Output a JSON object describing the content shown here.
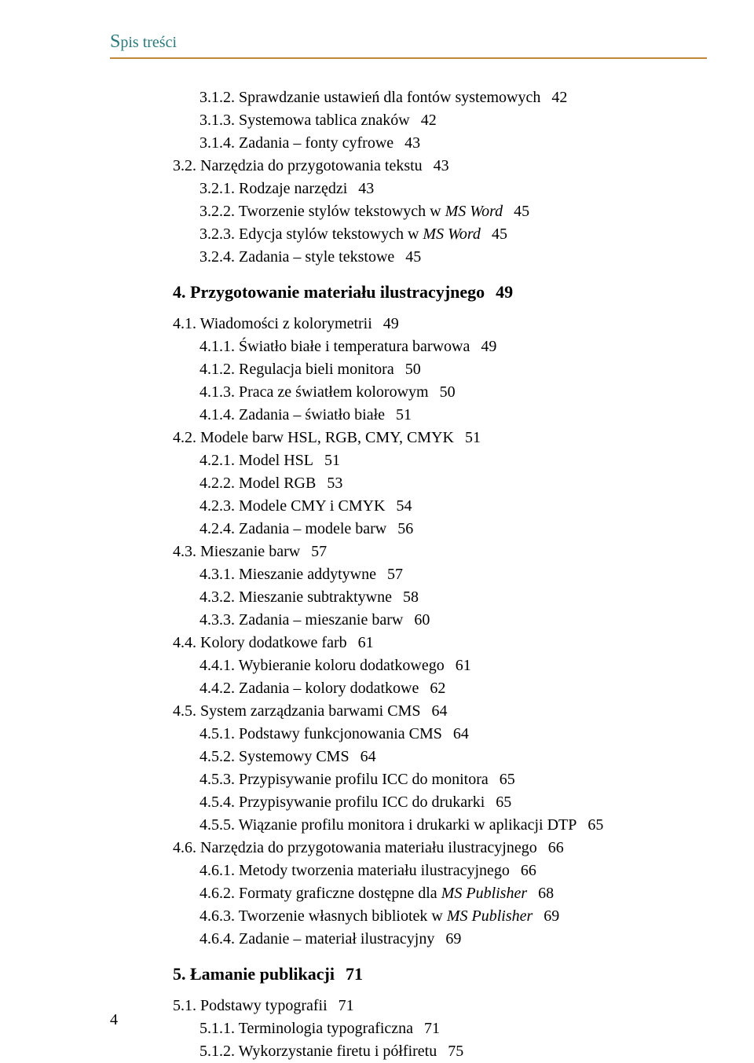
{
  "header": {
    "title_cap": "S",
    "title_rest": "pis treści"
  },
  "page_number": "4",
  "items": [
    {
      "lvl": 1,
      "num": "3.1.2.",
      "text": "Sprawdzanie ustawień dla fontów systemowych",
      "page": "42"
    },
    {
      "lvl": 1,
      "num": "3.1.3.",
      "text": "Systemowa tablica znaków",
      "page": "42"
    },
    {
      "lvl": 1,
      "num": "3.1.4.",
      "text": "Zadania – fonty cyfrowe",
      "page": "43"
    },
    {
      "lvl": 0,
      "num": "3.2.",
      "text": "Narzędzia do przygotowania tekstu",
      "page": "43"
    },
    {
      "lvl": 1,
      "num": "3.2.1.",
      "text": "Rodzaje narzędzi",
      "page": "43"
    },
    {
      "lvl": 1,
      "num": "3.2.2.",
      "text_pre": "Tworzenie stylów tekstowych w ",
      "text_ital": "MS Word",
      "page": "45"
    },
    {
      "lvl": 1,
      "num": "3.2.3.",
      "text_pre": "Edycja stylów tekstowych w ",
      "text_ital": "MS Word",
      "page": "45"
    },
    {
      "lvl": 1,
      "num": "3.2.4.",
      "text": "Zadania – style tekstowe",
      "page": "45",
      "gap_after": true
    },
    {
      "chapter": true,
      "num": "4.",
      "text": "Przygotowanie materiału ilustracyjnego",
      "page": "49"
    },
    {
      "lvl": 0,
      "num": "4.1.",
      "text": "Wiadomości z kolorymetrii",
      "page": "49"
    },
    {
      "lvl": 1,
      "num": "4.1.1.",
      "text": "Światło białe i temperatura barwowa",
      "page": "49"
    },
    {
      "lvl": 1,
      "num": "4.1.2.",
      "text": "Regulacja bieli monitora",
      "page": "50"
    },
    {
      "lvl": 1,
      "num": "4.1.3.",
      "text": "Praca ze światłem kolorowym",
      "page": "50"
    },
    {
      "lvl": 1,
      "num": "4.1.4.",
      "text": "Zadania – światło białe",
      "page": "51"
    },
    {
      "lvl": 0,
      "num": "4.2.",
      "text": "Modele barw HSL, RGB, CMY, CMYK",
      "page": "51"
    },
    {
      "lvl": 1,
      "num": "4.2.1.",
      "text": "Model HSL",
      "page": "51"
    },
    {
      "lvl": 1,
      "num": "4.2.2.",
      "text": "Model RGB",
      "page": "53"
    },
    {
      "lvl": 1,
      "num": "4.2.3.",
      "text": "Modele CMY i CMYK",
      "page": "54"
    },
    {
      "lvl": 1,
      "num": "4.2.4.",
      "text": "Zadania – modele barw",
      "page": "56"
    },
    {
      "lvl": 0,
      "num": "4.3.",
      "text": "Mieszanie barw",
      "page": "57"
    },
    {
      "lvl": 1,
      "num": "4.3.1.",
      "text": "Mieszanie addytywne",
      "page": "57"
    },
    {
      "lvl": 1,
      "num": "4.3.2.",
      "text": "Mieszanie subtraktywne",
      "page": "58"
    },
    {
      "lvl": 1,
      "num": "4.3.3.",
      "text": "Zadania – mieszanie barw",
      "page": "60"
    },
    {
      "lvl": 0,
      "num": "4.4.",
      "text": "Kolory dodatkowe farb",
      "page": "61"
    },
    {
      "lvl": 1,
      "num": "4.4.1.",
      "text": "Wybieranie koloru dodatkowego",
      "page": "61"
    },
    {
      "lvl": 1,
      "num": "4.4.2.",
      "text": "Zadania – kolory dodatkowe",
      "page": "62"
    },
    {
      "lvl": 0,
      "num": "4.5.",
      "text": "System zarządzania barwami CMS",
      "page": "64"
    },
    {
      "lvl": 1,
      "num": "4.5.1.",
      "text": "Podstawy funkcjonowania CMS",
      "page": "64"
    },
    {
      "lvl": 1,
      "num": "4.5.2.",
      "text": "Systemowy CMS",
      "page": "64"
    },
    {
      "lvl": 1,
      "num": "4.5.3.",
      "text": "Przypisywanie profilu ICC do monitora",
      "page": "65"
    },
    {
      "lvl": 1,
      "num": "4.5.4.",
      "text": "Przypisywanie profilu ICC do drukarki",
      "page": "65"
    },
    {
      "lvl": 1,
      "num": "4.5.5.",
      "text": "Wiązanie profilu monitora i drukarki w aplikacji DTP",
      "page": "65"
    },
    {
      "lvl": 0,
      "num": "4.6.",
      "text": "Narzędzia do przygotowania materiału ilustracyjnego",
      "page": "66"
    },
    {
      "lvl": 1,
      "num": "4.6.1.",
      "text": "Metody tworzenia materiału ilustracyjnego",
      "page": "66"
    },
    {
      "lvl": 1,
      "num": "4.6.2.",
      "text_pre": "Formaty graficzne dostępne dla ",
      "text_ital": "MS Publisher",
      "page": "68"
    },
    {
      "lvl": 1,
      "num": "4.6.3.",
      "text_pre": "Tworzenie własnych bibliotek w ",
      "text_ital": "MS Publisher",
      "page": "69"
    },
    {
      "lvl": 1,
      "num": "4.6.4.",
      "text": "Zadanie – materiał ilustracyjny",
      "page": "69",
      "gap_after": true
    },
    {
      "chapter": true,
      "num": "5.",
      "text": "Łamanie publikacji",
      "page": "71"
    },
    {
      "lvl": 0,
      "num": "5.1.",
      "text": "Podstawy typografii",
      "page": "71"
    },
    {
      "lvl": 1,
      "num": "5.1.1.",
      "text": "Terminologia typograficzna",
      "page": "71"
    },
    {
      "lvl": 1,
      "num": "5.1.2.",
      "text": "Wykorzystanie firetu i półfiretu",
      "page": "75"
    }
  ]
}
